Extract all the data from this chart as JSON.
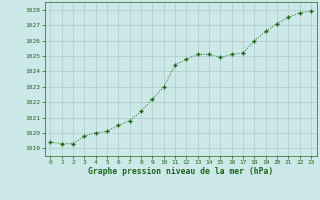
{
  "x": [
    0,
    1,
    2,
    3,
    4,
    5,
    6,
    7,
    8,
    9,
    10,
    11,
    12,
    13,
    14,
    15,
    16,
    17,
    18,
    19,
    20,
    21,
    22,
    23
  ],
  "y": [
    1019.4,
    1019.3,
    1019.3,
    1019.8,
    1020.0,
    1020.1,
    1020.5,
    1020.8,
    1021.4,
    1022.2,
    1023.0,
    1024.4,
    1024.8,
    1025.1,
    1025.1,
    1024.9,
    1025.1,
    1025.2,
    1026.0,
    1026.6,
    1027.1,
    1027.5,
    1027.8,
    1027.9
  ],
  "line_color": "#1a6618",
  "marker_color": "#1a6618",
  "background_color": "#cde8e8",
  "grid_color": "#b0ccc8",
  "xlabel": "Graphe pression niveau de la mer (hPa)",
  "ylim": [
    1018.5,
    1028.5
  ],
  "xlim": [
    -0.5,
    23.5
  ],
  "yticks": [
    1019,
    1020,
    1021,
    1022,
    1023,
    1024,
    1025,
    1026,
    1027,
    1028
  ],
  "xticks": [
    0,
    1,
    2,
    3,
    4,
    5,
    6,
    7,
    8,
    9,
    10,
    11,
    12,
    13,
    14,
    15,
    16,
    17,
    18,
    19,
    20,
    21,
    22,
    23
  ]
}
